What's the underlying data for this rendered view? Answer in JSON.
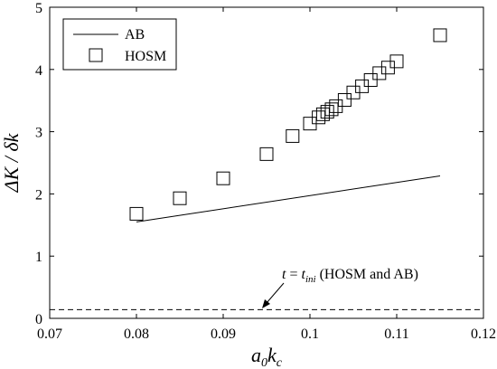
{
  "chart_data": {
    "type": "scatter",
    "xlabel": "a₀k꜀",
    "ylabel": "ΔK / δk",
    "xlim": [
      0.07,
      0.12
    ],
    "ylim": [
      0,
      5
    ],
    "x_ticks": [
      "0.07",
      "0.08",
      "0.09",
      "0.1",
      "0.11",
      "0.12"
    ],
    "y_ticks": [
      "0",
      "1",
      "2",
      "3",
      "4",
      "5"
    ],
    "grid": false,
    "legend_position": "top-left",
    "series": [
      {
        "name": "AB",
        "style": "line",
        "color": "#000000",
        "x": [
          0.08,
          0.115
        ],
        "y": [
          1.55,
          2.29
        ]
      },
      {
        "name": "HOSM",
        "style": "square-markers",
        "color": "#000000",
        "x": [
          0.08,
          0.085,
          0.09,
          0.095,
          0.098,
          0.1,
          0.101,
          0.1015,
          0.102,
          0.1025,
          0.103,
          0.104,
          0.105,
          0.106,
          0.107,
          0.108,
          0.109,
          0.11,
          0.115
        ],
        "y": [
          1.68,
          1.93,
          2.25,
          2.64,
          2.93,
          3.13,
          3.23,
          3.28,
          3.32,
          3.36,
          3.41,
          3.51,
          3.63,
          3.73,
          3.83,
          3.94,
          4.03,
          4.13,
          4.55
        ]
      },
      {
        "name": "",
        "style": "dashed-line",
        "color": "#000000",
        "x": [
          0.07,
          0.12
        ],
        "y": [
          0.14,
          0.14
        ]
      }
    ],
    "annotation": {
      "text_t": "t",
      "text_eq": " = ",
      "text_tini": "t",
      "text_tini_sub": "ini",
      "text_rest": " (HOSM and AB)",
      "arrow_to": [
        0.095,
        0.14
      ]
    }
  }
}
